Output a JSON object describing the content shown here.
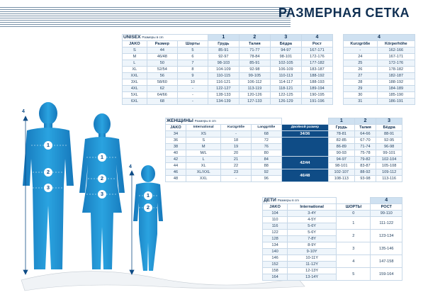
{
  "title": "РАЗМЕРНАЯ СЕТКА",
  "unisex": {
    "label": "UNISEX",
    "sub": "Размеры в cm",
    "nums": [
      "1",
      "2",
      "3",
      "4"
    ],
    "headers": [
      "JAKO",
      "Размер",
      "Шорты",
      "Грудь",
      "Талия",
      "Бёдра",
      "Рост"
    ],
    "rows": [
      [
        "S",
        "44",
        "5",
        "85-91",
        "71-77",
        "94-97",
        "167-171"
      ],
      [
        "M",
        "46/48",
        "6",
        "92-97",
        "78-84",
        "98-101",
        "172-176"
      ],
      [
        "L",
        "50",
        "7",
        "98-103",
        "85-91",
        "102-105",
        "177-182"
      ],
      [
        "XL",
        "52/54",
        "8",
        "104-109",
        "92-98",
        "106-109",
        "183-187"
      ],
      [
        "XXL",
        "56",
        "9",
        "110-115",
        "99-105",
        "110-113",
        "188-192"
      ],
      [
        "3XL",
        "58/60",
        "10",
        "116-121",
        "106-112",
        "114-117",
        "188-193"
      ],
      [
        "4XL",
        "62",
        "-",
        "122-127",
        "113-119",
        "118-121",
        "189-194"
      ],
      [
        "5XL",
        "64/66",
        "-",
        "128-133",
        "120-126",
        "122-125",
        "190-195"
      ],
      [
        "6XL",
        "68",
        "-",
        "134-139",
        "127-133",
        "126-129",
        "191-196"
      ]
    ]
  },
  "unisex_de": {
    "num": "4",
    "headers": [
      "Kurzgröße",
      "Körperhöhe"
    ],
    "rows": [
      [
        "-",
        "162-166"
      ],
      [
        "24",
        "167-171"
      ],
      [
        "25",
        "172-176"
      ],
      [
        "26",
        "178-182"
      ],
      [
        "27",
        "182-187"
      ],
      [
        "28",
        "188-192"
      ],
      [
        "29",
        "184-189"
      ],
      [
        "30",
        "185-190"
      ],
      [
        "31",
        "186-191"
      ]
    ]
  },
  "women": {
    "label": "ЖЕНЩИНЫ",
    "sub": "Размеры в cm",
    "nums": [
      "1",
      "2",
      "3"
    ],
    "headers": [
      "JAKO",
      "International",
      "Kurzgröße",
      "Langgröße",
      "Двойной размер",
      "Грудь",
      "Талия",
      "Бёдра"
    ],
    "rows": [
      [
        "34",
        "XS",
        "-",
        "68",
        "34/36",
        "78-81",
        "64-66",
        "88-91"
      ],
      [
        "36",
        "S",
        "18",
        "72",
        "",
        "82-85",
        "67-70",
        "92-95"
      ],
      [
        "38",
        "M",
        "19",
        "76",
        "",
        "86-89",
        "71-74",
        "96-98"
      ],
      [
        "40",
        "M/L",
        "20",
        "80",
        "",
        "90-93",
        "75-78",
        "99-101"
      ],
      [
        "42",
        "L",
        "21",
        "84",
        "42/44",
        "94-97",
        "79-82",
        "102-104"
      ],
      [
        "44",
        "XL",
        "22",
        "88",
        "",
        "98-101",
        "83-87",
        "105-108"
      ],
      [
        "46",
        "XL/XXL",
        "23",
        "92",
        "46/48",
        "102-107",
        "88-92",
        "109-112"
      ],
      [
        "48",
        "XXL",
        "-",
        "96",
        "",
        "108-113",
        "93-98",
        "113-116"
      ]
    ]
  },
  "kids": {
    "label": "ДЕТИ",
    "sub": "Размеры в cm",
    "num": "4",
    "headers": [
      "JAKO",
      "International",
      "ШОРТЫ",
      "РОСТ"
    ],
    "rows": [
      [
        "104",
        "3-4Y"
      ],
      [
        "110",
        "4-5Y"
      ],
      [
        "116",
        "5-6Y"
      ],
      [
        "122",
        "5-6Y"
      ],
      [
        "128",
        "7-8Y"
      ],
      [
        "134",
        "8-9Y"
      ],
      [
        "140",
        "9-10Y"
      ],
      [
        "146",
        "10-11Y"
      ],
      [
        "152",
        "11-12Y"
      ],
      [
        "158",
        "12-13Y"
      ],
      [
        "164",
        "13-14Y"
      ]
    ],
    "shorts": [
      "0",
      "1",
      "2",
      "3",
      "4",
      "5"
    ],
    "heights": [
      "99-110",
      "111-122",
      "123-134",
      "135-146",
      "147-158",
      "159-164"
    ]
  },
  "markers": [
    "1",
    "2",
    "3",
    "4"
  ],
  "colors": {
    "figure": "#1e8fd0",
    "header": "#0f4c86",
    "accent": "#0f2f52"
  }
}
